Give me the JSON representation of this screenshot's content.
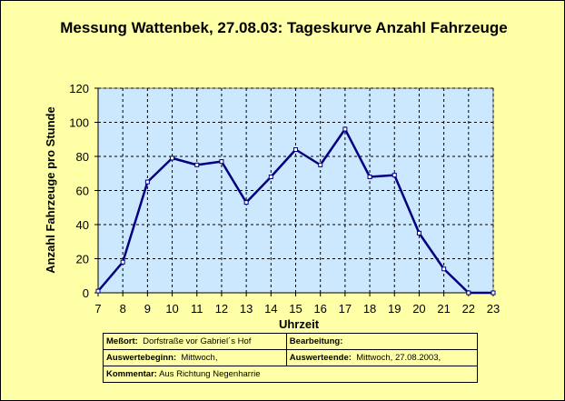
{
  "chart_data": {
    "type": "line",
    "title": "Messung Wattenbek, 27.08.03: Tageskurve Anzahl Fahrzeuge",
    "xlabel": "Uhrzeit",
    "ylabel": "Anzahl Fahrzeuge pro Stunde",
    "xlim": [
      7,
      23
    ],
    "ylim": [
      0,
      120
    ],
    "x_ticks": [
      7,
      8,
      9,
      10,
      11,
      12,
      13,
      14,
      15,
      16,
      17,
      18,
      19,
      20,
      21,
      22,
      23
    ],
    "y_ticks": [
      0,
      20,
      40,
      60,
      80,
      100,
      120
    ],
    "grid": true,
    "legend": "none",
    "series": [
      {
        "x": [
          7,
          8,
          9,
          10,
          11,
          12,
          13,
          14,
          15,
          16,
          17,
          18,
          19,
          20,
          21,
          22,
          23
        ],
        "values": [
          1,
          18,
          65,
          79,
          75,
          77,
          53,
          68,
          84,
          75,
          96,
          68,
          69,
          35,
          14,
          0,
          0
        ]
      }
    ],
    "colors": {
      "line": "#000080",
      "plot_area": "#cce8ff",
      "background": "#ffffa8",
      "marker": "#ffffff"
    }
  },
  "info": {
    "messort_label": "Meßort:",
    "messort_value": "Dorfstraße vor Gabriel´s Hof",
    "bearbeitung_label": "Bearbeitung:",
    "bearbeitung_value": "",
    "beginn_label": "Auswertebeginn:",
    "beginn_value": "Mittwoch,",
    "ende_label": "Auswerteende:",
    "ende_value": "Mittwoch, 27.08.2003,",
    "kommentar_label": "Kommentar:",
    "kommentar_value": "Aus Richtung Negenharrie"
  }
}
